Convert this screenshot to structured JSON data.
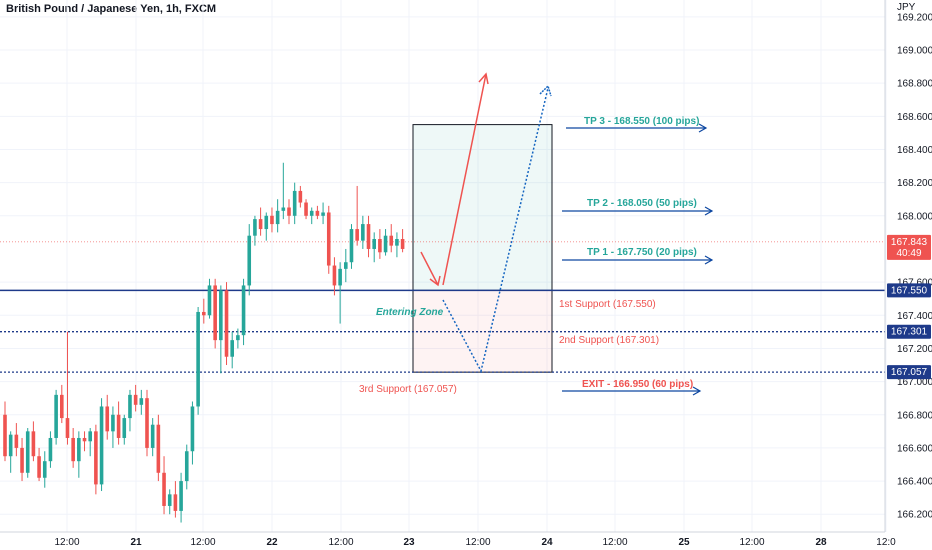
{
  "title": "British Pound / Japanese Yen, 1h, FXCM",
  "chart_data": {
    "type": "candlestick",
    "title": "British Pound / Japanese Yen, 1h, FXCM",
    "currency": "JPY",
    "ylim": [
      166.1,
      169.3
    ],
    "y_ticks": [
      "169.200",
      "169.000",
      "168.800",
      "168.600",
      "168.400",
      "168.200",
      "168.000",
      "167.600",
      "167.400",
      "167.200",
      "167.000",
      "166.800",
      "166.600",
      "166.400",
      "166.200"
    ],
    "x_ticks": [
      "12:00",
      "21",
      "12:00",
      "22",
      "12:00",
      "23",
      "12:00",
      "24",
      "12:00",
      "25",
      "12:00",
      "28",
      "12:0"
    ],
    "current_price": {
      "value": "167.843",
      "countdown": "40:49"
    },
    "price_labels": [
      "167.550",
      "167.301",
      "167.057"
    ],
    "horizontal_lines": [
      {
        "value": 167.55,
        "style": "solid"
      },
      {
        "value": 167.301,
        "style": "dotted"
      },
      {
        "value": 167.057,
        "style": "dotted"
      }
    ],
    "colors": {
      "up": "#26a69a",
      "down": "#ef5350",
      "line": "#1e3a8a",
      "arrow": "#0d47a1",
      "tp_text": "#26a69a",
      "support_text": "#ef5350"
    },
    "candles": [
      [
        166.8,
        166.88,
        166.52,
        166.55
      ],
      [
        166.55,
        166.7,
        166.45,
        166.68
      ],
      [
        166.68,
        166.75,
        166.55,
        166.6
      ],
      [
        166.6,
        166.66,
        166.4,
        166.45
      ],
      [
        166.45,
        166.72,
        166.42,
        166.7
      ],
      [
        166.7,
        166.76,
        166.52,
        166.55
      ],
      [
        166.55,
        166.6,
        166.4,
        166.42
      ],
      [
        166.42,
        166.58,
        166.36,
        166.52
      ],
      [
        166.52,
        166.7,
        166.48,
        166.66
      ],
      [
        166.66,
        166.95,
        166.62,
        166.92
      ],
      [
        166.92,
        166.98,
        166.75,
        166.78
      ],
      [
        166.78,
        167.3,
        166.62,
        166.66
      ],
      [
        166.66,
        166.72,
        166.48,
        166.52
      ],
      [
        166.52,
        166.7,
        166.42,
        166.66
      ],
      [
        166.66,
        166.7,
        166.58,
        166.64
      ],
      [
        166.64,
        166.72,
        166.55,
        166.7
      ],
      [
        166.7,
        166.74,
        166.32,
        166.38
      ],
      [
        166.38,
        166.9,
        166.34,
        166.85
      ],
      [
        166.85,
        166.92,
        166.65,
        166.7
      ],
      [
        166.7,
        166.85,
        166.6,
        166.8
      ],
      [
        166.8,
        166.88,
        166.62,
        166.66
      ],
      [
        166.66,
        166.8,
        166.62,
        166.78
      ],
      [
        166.78,
        166.95,
        166.7,
        166.92
      ],
      [
        166.92,
        166.98,
        166.82,
        166.86
      ],
      [
        166.86,
        166.95,
        166.8,
        166.9
      ],
      [
        166.9,
        166.95,
        166.55,
        166.6
      ],
      [
        166.6,
        166.78,
        166.55,
        166.74
      ],
      [
        166.74,
        166.8,
        166.4,
        166.45
      ],
      [
        166.45,
        166.55,
        166.2,
        166.25
      ],
      [
        166.25,
        166.35,
        166.2,
        166.32
      ],
      [
        166.32,
        166.4,
        166.18,
        166.22
      ],
      [
        166.22,
        166.45,
        166.15,
        166.4
      ],
      [
        166.4,
        166.62,
        166.35,
        166.58
      ],
      [
        166.58,
        166.88,
        166.5,
        166.85
      ],
      [
        166.85,
        167.45,
        166.8,
        167.42
      ],
      [
        167.42,
        167.5,
        167.35,
        167.4
      ],
      [
        167.4,
        167.62,
        167.38,
        167.58
      ],
      [
        167.58,
        167.62,
        167.2,
        167.25
      ],
      [
        167.25,
        167.58,
        167.05,
        167.55
      ],
      [
        167.55,
        167.6,
        167.1,
        167.15
      ],
      [
        167.15,
        167.3,
        167.08,
        167.25
      ],
      [
        167.25,
        167.32,
        167.2,
        167.28
      ],
      [
        167.28,
        167.62,
        167.22,
        167.58
      ],
      [
        167.58,
        167.95,
        167.52,
        167.88
      ],
      [
        167.88,
        168.0,
        167.82,
        167.98
      ],
      [
        167.98,
        168.05,
        167.88,
        167.92
      ],
      [
        167.92,
        168.02,
        167.85,
        168.0
      ],
      [
        168.0,
        168.05,
        167.9,
        167.95
      ],
      [
        167.95,
        168.1,
        167.9,
        168.03
      ],
      [
        168.03,
        168.32,
        167.98,
        168.05
      ],
      [
        168.05,
        168.1,
        167.95,
        168.0
      ],
      [
        168.0,
        168.2,
        167.95,
        168.15
      ],
      [
        168.15,
        168.18,
        168.05,
        168.08
      ],
      [
        168.08,
        168.1,
        167.98,
        168.0
      ],
      [
        168.0,
        168.05,
        167.95,
        168.03
      ],
      [
        168.03,
        168.06,
        167.98,
        168.0
      ],
      [
        168.0,
        168.08,
        167.95,
        168.02
      ],
      [
        168.02,
        168.06,
        167.65,
        167.7
      ],
      [
        167.7,
        167.75,
        167.52,
        167.58
      ],
      [
        167.58,
        167.72,
        167.35,
        167.68
      ],
      [
        167.68,
        167.8,
        167.6,
        167.72
      ],
      [
        167.72,
        167.95,
        167.68,
        167.92
      ],
      [
        167.92,
        168.18,
        167.82,
        167.85
      ],
      [
        167.85,
        168.0,
        167.8,
        167.95
      ],
      [
        167.95,
        168.0,
        167.75,
        167.8
      ],
      [
        167.8,
        167.9,
        167.72,
        167.86
      ],
      [
        167.86,
        167.92,
        167.74,
        167.78
      ],
      [
        167.78,
        167.92,
        167.76,
        167.88
      ],
      [
        167.88,
        167.95,
        167.78,
        167.82
      ],
      [
        167.82,
        167.9,
        167.75,
        167.86
      ],
      [
        167.86,
        167.92,
        167.78,
        167.8
      ]
    ],
    "labels": {
      "tp3": "TP 3 - 168.550 (100 pips)",
      "tp2": "TP 2 - 168.050 (50 pips)",
      "tp1": "TP 1 - 167.750 (20 pips)",
      "entering": "Entering Zone",
      "support1": "1st Support (167.550)",
      "support2": "2nd Support (167.301)",
      "support3": "3rd Support (167.057)",
      "exit": "EXIT - 166.950 (60 pips)"
    }
  }
}
